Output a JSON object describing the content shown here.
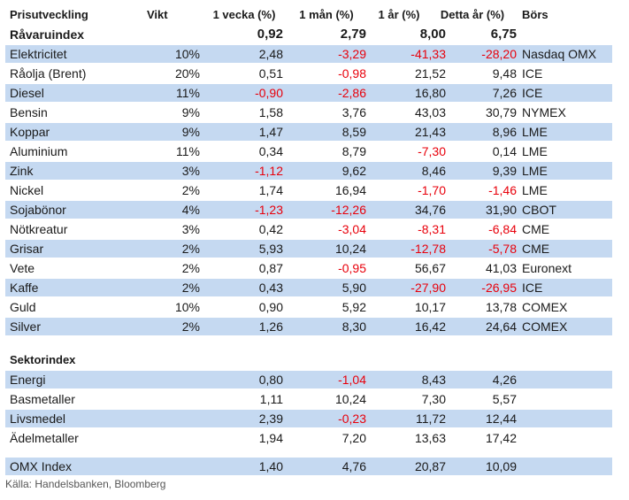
{
  "header": {
    "col0": "Prisutveckling",
    "col1": "Vikt",
    "col2": "1 vecka (%)",
    "col3": "1 mån (%)",
    "col4": "1 år (%)",
    "col5": "Detta år (%)",
    "col6": "Börs"
  },
  "index_row": {
    "label": "Råvaruindex",
    "w1": "0,92",
    "m1": "2,79",
    "y1": "8,00",
    "ytd": "6,75"
  },
  "commodities": [
    {
      "name": "Elektricitet",
      "weight": "10%",
      "w1": "2,48",
      "m1": "-3,29",
      "y1": "-41,33",
      "ytd": "-28,20",
      "exchange": "Nasdaq OMX"
    },
    {
      "name": "Råolja (Brent)",
      "weight": "20%",
      "w1": "0,51",
      "m1": "-0,98",
      "y1": "21,52",
      "ytd": "9,48",
      "exchange": "ICE"
    },
    {
      "name": "Diesel",
      "weight": "11%",
      "w1": "-0,90",
      "m1": "-2,86",
      "y1": "16,80",
      "ytd": "7,26",
      "exchange": "ICE"
    },
    {
      "name": "Bensin",
      "weight": "9%",
      "w1": "1,58",
      "m1": "3,76",
      "y1": "43,03",
      "ytd": "30,79",
      "exchange": "NYMEX"
    },
    {
      "name": "Koppar",
      "weight": "9%",
      "w1": "1,47",
      "m1": "8,59",
      "y1": "21,43",
      "ytd": "8,96",
      "exchange": "LME"
    },
    {
      "name": "Aluminium",
      "weight": "11%",
      "w1": "0,34",
      "m1": "8,79",
      "y1": "-7,30",
      "ytd": "0,14",
      "exchange": "LME"
    },
    {
      "name": "Zink",
      "weight": "3%",
      "w1": "-1,12",
      "m1": "9,62",
      "y1": "8,46",
      "ytd": "9,39",
      "exchange": "LME"
    },
    {
      "name": "Nickel",
      "weight": "2%",
      "w1": "1,74",
      "m1": "16,94",
      "y1": "-1,70",
      "ytd": "-1,46",
      "exchange": "LME"
    },
    {
      "name": "Sojabönor",
      "weight": "4%",
      "w1": "-1,23",
      "m1": "-12,26",
      "y1": "34,76",
      "ytd": "31,90",
      "exchange": "CBOT"
    },
    {
      "name": "Nötkreatur",
      "weight": "3%",
      "w1": "0,42",
      "m1": "-3,04",
      "y1": "-8,31",
      "ytd": "-6,84",
      "exchange": "CME"
    },
    {
      "name": "Grisar",
      "weight": "2%",
      "w1": "5,93",
      "m1": "10,24",
      "y1": "-12,78",
      "ytd": "-5,78",
      "exchange": "CME"
    },
    {
      "name": "Vete",
      "weight": "2%",
      "w1": "0,87",
      "m1": "-0,95",
      "y1": "56,67",
      "ytd": "41,03",
      "exchange": "Euronext"
    },
    {
      "name": "Kaffe",
      "weight": "2%",
      "w1": "0,43",
      "m1": "5,90",
      "y1": "-27,90",
      "ytd": "-26,95",
      "exchange": "ICE"
    },
    {
      "name": "Guld",
      "weight": "10%",
      "w1": "0,90",
      "m1": "5,92",
      "y1": "10,17",
      "ytd": "13,78",
      "exchange": "COMEX"
    },
    {
      "name": "Silver",
      "weight": "2%",
      "w1": "1,26",
      "m1": "8,30",
      "y1": "16,42",
      "ytd": "24,64",
      "exchange": "COMEX"
    }
  ],
  "sector_header": "Sektorindex",
  "sectors": [
    {
      "name": "Energi",
      "w1": "0,80",
      "m1": "-1,04",
      "y1": "8,43",
      "ytd": "4,26"
    },
    {
      "name": "Basmetaller",
      "w1": "1,11",
      "m1": "10,24",
      "y1": "7,30",
      "ytd": "5,57"
    },
    {
      "name": "Livsmedel",
      "w1": "2,39",
      "m1": "-0,23",
      "y1": "11,72",
      "ytd": "12,44"
    },
    {
      "name": "Ädelmetaller",
      "w1": "1,94",
      "m1": "7,20",
      "y1": "13,63",
      "ytd": "17,42"
    }
  ],
  "omx": {
    "name": "OMX Index",
    "w1": "1,40",
    "m1": "4,76",
    "y1": "20,87",
    "ytd": "10,09"
  },
  "source": "Källa: Handelsbanken, Bloomberg",
  "colors": {
    "row_shade": "#c5d9f1",
    "negative": "#e8000b"
  }
}
